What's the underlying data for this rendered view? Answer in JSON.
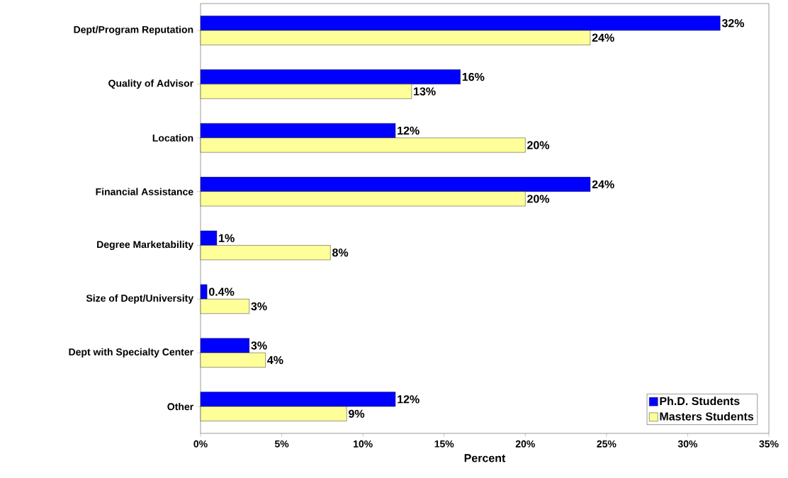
{
  "chart_data": {
    "type": "bar",
    "orientation": "horizontal",
    "categories": [
      "Dept/Program Reputation",
      "Quality of Advisor",
      "Location",
      "Financial Assistance",
      "Degree Marketability",
      "Size of Dept/University",
      "Dept with Specialty Center",
      "Other"
    ],
    "series": [
      {
        "name": "Ph.D. Students",
        "color": "#0000ff",
        "values": [
          32,
          16,
          12,
          24,
          1,
          0.4,
          3,
          12
        ],
        "value_labels": [
          "32%",
          "16%",
          "12%",
          "24%",
          "1%",
          "0.4%",
          "3%",
          "12%"
        ]
      },
      {
        "name": "Masters Students",
        "color": "#ffff99",
        "values": [
          24,
          13,
          20,
          20,
          8,
          3,
          4,
          9
        ],
        "value_labels": [
          "24%",
          "13%",
          "20%",
          "20%",
          "8%",
          "3%",
          "4%",
          "9%"
        ]
      }
    ],
    "xlim": [
      0,
      35
    ],
    "xticks": [
      {
        "value": 0,
        "label": "0%"
      },
      {
        "value": 5,
        "label": "5%"
      },
      {
        "value": 10,
        "label": "10%"
      },
      {
        "value": 15,
        "label": "15%"
      },
      {
        "value": 20,
        "label": "20%"
      },
      {
        "value": 25,
        "label": "25%"
      },
      {
        "value": 30,
        "label": "30%"
      },
      {
        "value": 35,
        "label": "35%"
      }
    ],
    "xlabel": "Percent",
    "legend": "bottom right"
  }
}
